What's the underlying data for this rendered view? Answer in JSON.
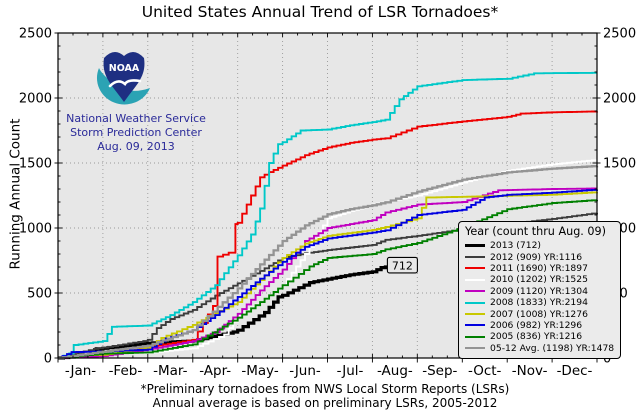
{
  "logo": {
    "acronym": "NOAA",
    "caption_lines": [
      "National Weather Service",
      "Storm Prediction Center",
      "Aug. 09, 2013"
    ]
  },
  "colors": {
    "figure_bg": "#ffffff",
    "plot_bg": "#e7e7e7",
    "grid": "#999999",
    "axis": "#000000",
    "legend_bg": "#ebebeb",
    "caption_blue": "#2a2a99",
    "logo_navy": "#1e2f82",
    "logo_teal": "#2ba3b4",
    "annotation_bg": "#e8e8e8"
  },
  "chart_data": {
    "type": "line",
    "title": "United States Annual Trend of LSR Tornadoes*",
    "ylabel": "Running Annual Count",
    "ylim": [
      0,
      2500
    ],
    "yticks": [
      0,
      500,
      1000,
      1500,
      2000,
      2500
    ],
    "x_unit": "month (Jan 1 = 0, Dec 31 = 12); x values are month-fraction positions",
    "x_tick_labels": [
      "-Jan-",
      "-Feb-",
      "-Mar-",
      "-Apr-",
      "-May-",
      "-Jun-",
      "-Jul-",
      "-Aug-",
      "-Sep-",
      "-Oct-",
      "-Nov-",
      "-Dec-"
    ],
    "grid": "dotted gray at 500-count intervals and month boundaries",
    "legend": {
      "title": "Year (count thru Aug. 09)",
      "position": "lower right"
    },
    "annotation": {
      "text": "712",
      "x_month": 7.29,
      "value": 712
    },
    "footnotes": [
      "*Preliminary tornadoes from NWS Local Storm Reports (LSRs)",
      "Annual average is based on preliminary LSRs, 2005-2012"
    ],
    "series": [
      {
        "name": "2013",
        "label": "2013 (712)",
        "color": "#000000",
        "width": 3.2,
        "points": [
          [
            0,
            0
          ],
          [
            0.6,
            20
          ],
          [
            0.85,
            70
          ],
          [
            1,
            75
          ],
          [
            2,
            114
          ],
          [
            3,
            132
          ],
          [
            3.9,
            200
          ],
          [
            4,
            214
          ],
          [
            4.6,
            350
          ],
          [
            4.9,
            470
          ],
          [
            5,
            482
          ],
          [
            5.6,
            580
          ],
          [
            6,
            607
          ],
          [
            6.5,
            640
          ],
          [
            7,
            663
          ],
          [
            7.29,
            712
          ]
        ]
      },
      {
        "name": "2012",
        "label": "2012 (909) YR:1116",
        "color": "#3c3c3c",
        "width": 1.9,
        "points": [
          [
            0,
            0
          ],
          [
            0.8,
            70
          ],
          [
            1,
            80
          ],
          [
            1.9,
            130
          ],
          [
            2,
            140
          ],
          [
            2.2,
            230
          ],
          [
            2.5,
            300
          ],
          [
            3,
            370
          ],
          [
            3.5,
            480
          ],
          [
            4,
            575
          ],
          [
            4.5,
            670
          ],
          [
            5,
            770
          ],
          [
            5.5,
            805
          ],
          [
            6,
            830
          ],
          [
            6.5,
            850
          ],
          [
            7,
            870
          ],
          [
            7.29,
            909
          ],
          [
            8,
            940
          ],
          [
            9,
            990
          ],
          [
            10,
            1030
          ],
          [
            11,
            1070
          ],
          [
            12,
            1116
          ]
        ]
      },
      {
        "name": "2011",
        "label": "2011 (1690) YR:1897",
        "color": "#ee0000",
        "width": 1.9,
        "points": [
          [
            0,
            0
          ],
          [
            0.5,
            10
          ],
          [
            1,
            20
          ],
          [
            2,
            85
          ],
          [
            3,
            140
          ],
          [
            3.45,
            400
          ],
          [
            3.55,
            780
          ],
          [
            3.8,
            810
          ],
          [
            3.95,
            1030
          ],
          [
            4,
            1040
          ],
          [
            4.5,
            1390
          ],
          [
            4.7,
            1430
          ],
          [
            5,
            1480
          ],
          [
            5.5,
            1560
          ],
          [
            6,
            1620
          ],
          [
            6.5,
            1655
          ],
          [
            7,
            1680
          ],
          [
            7.29,
            1690
          ],
          [
            8,
            1780
          ],
          [
            9,
            1820
          ],
          [
            10,
            1855
          ],
          [
            10.3,
            1880
          ],
          [
            11,
            1890
          ],
          [
            12,
            1897
          ]
        ]
      },
      {
        "name": "2010",
        "label": "2010 (1202) YR:1525",
        "color": "#ffffff",
        "width": 1.9,
        "points": [
          [
            0,
            0
          ],
          [
            1,
            36
          ],
          [
            2,
            40
          ],
          [
            3,
            75
          ],
          [
            3.7,
            180
          ],
          [
            4,
            330
          ],
          [
            4.5,
            430
          ],
          [
            5,
            560
          ],
          [
            5.5,
            800
          ],
          [
            6,
            1075
          ],
          [
            6.5,
            1130
          ],
          [
            7,
            1180
          ],
          [
            7.29,
            1202
          ],
          [
            8,
            1250
          ],
          [
            9,
            1350
          ],
          [
            10,
            1440
          ],
          [
            11,
            1490
          ],
          [
            12,
            1525
          ]
        ]
      },
      {
        "name": "2009",
        "label": "2009 (1120) YR:1304",
        "color": "#c000c0",
        "width": 1.9,
        "points": [
          [
            0,
            0
          ],
          [
            1,
            15
          ],
          [
            2,
            65
          ],
          [
            3,
            130
          ],
          [
            3.5,
            200
          ],
          [
            4,
            340
          ],
          [
            4.5,
            520
          ],
          [
            5,
            680
          ],
          [
            5.5,
            900
          ],
          [
            6,
            1000
          ],
          [
            6.5,
            1030
          ],
          [
            7,
            1060
          ],
          [
            7.29,
            1120
          ],
          [
            8,
            1180
          ],
          [
            9,
            1200
          ],
          [
            9.8,
            1290
          ],
          [
            11,
            1300
          ],
          [
            12,
            1304
          ]
        ]
      },
      {
        "name": "2008",
        "label": "2008 (1833) YR:2194",
        "color": "#00c8c8",
        "width": 1.9,
        "points": [
          [
            0,
            0
          ],
          [
            0.25,
            35
          ],
          [
            0.35,
            100
          ],
          [
            1,
            130
          ],
          [
            1.2,
            240
          ],
          [
            2,
            250
          ],
          [
            2.5,
            330
          ],
          [
            3,
            430
          ],
          [
            3.5,
            560
          ],
          [
            4,
            790
          ],
          [
            4.3,
            950
          ],
          [
            4.5,
            1150
          ],
          [
            4.7,
            1500
          ],
          [
            4.9,
            1645
          ],
          [
            5,
            1660
          ],
          [
            5.4,
            1750
          ],
          [
            6,
            1758
          ],
          [
            6.5,
            1790
          ],
          [
            7,
            1815
          ],
          [
            7.29,
            1833
          ],
          [
            7.6,
            1990
          ],
          [
            8,
            2090
          ],
          [
            9,
            2138
          ],
          [
            10,
            2148
          ],
          [
            10.6,
            2190
          ],
          [
            12,
            2194
          ]
        ]
      },
      {
        "name": "2007",
        "label": "2007 (1008) YR:1276",
        "color": "#c8c800",
        "width": 1.9,
        "points": [
          [
            0,
            0
          ],
          [
            0.5,
            20
          ],
          [
            1,
            25
          ],
          [
            2,
            80
          ],
          [
            2.3,
            155
          ],
          [
            3,
            255
          ],
          [
            3.5,
            345
          ],
          [
            4,
            430
          ],
          [
            4.5,
            600
          ],
          [
            5,
            770
          ],
          [
            5.5,
            880
          ],
          [
            6,
            940
          ],
          [
            7,
            985
          ],
          [
            7.29,
            1008
          ],
          [
            8,
            1075
          ],
          [
            8.2,
            1235
          ],
          [
            9,
            1240
          ],
          [
            10,
            1248
          ],
          [
            11,
            1256
          ],
          [
            12,
            1276
          ]
        ]
      },
      {
        "name": "2006",
        "label": "2006 (982) YR:1296",
        "color": "#0000e0",
        "width": 1.9,
        "points": [
          [
            0,
            0
          ],
          [
            0.3,
            45
          ],
          [
            1,
            50
          ],
          [
            2,
            65
          ],
          [
            2.4,
            150
          ],
          [
            3,
            215
          ],
          [
            3.5,
            330
          ],
          [
            4,
            470
          ],
          [
            4.5,
            610
          ],
          [
            5,
            740
          ],
          [
            5.5,
            855
          ],
          [
            6,
            920
          ],
          [
            7,
            965
          ],
          [
            7.29,
            982
          ],
          [
            8,
            1100
          ],
          [
            9,
            1140
          ],
          [
            9.5,
            1235
          ],
          [
            10,
            1255
          ],
          [
            11,
            1272
          ],
          [
            12,
            1296
          ]
        ]
      },
      {
        "name": "2005",
        "label": "2005 (836) YR:1216",
        "color": "#008000",
        "width": 1.9,
        "points": [
          [
            0,
            0
          ],
          [
            1,
            33
          ],
          [
            2,
            43
          ],
          [
            3,
            105
          ],
          [
            4,
            310
          ],
          [
            4.5,
            430
          ],
          [
            5,
            560
          ],
          [
            5.6,
            705
          ],
          [
            6,
            770
          ],
          [
            7,
            800
          ],
          [
            7.29,
            836
          ],
          [
            8,
            885
          ],
          [
            9,
            1005
          ],
          [
            10,
            1145
          ],
          [
            11,
            1192
          ],
          [
            12,
            1216
          ]
        ]
      },
      {
        "name": "avg-2005-2012",
        "label": "05-12 Avg. (1198) YR:1478",
        "color": "#949494",
        "width": 2.3,
        "points": [
          [
            0,
            0
          ],
          [
            1,
            49
          ],
          [
            2,
            95
          ],
          [
            3,
            215
          ],
          [
            4,
            535
          ],
          [
            4.5,
            720
          ],
          [
            5,
            900
          ],
          [
            5.5,
            1020
          ],
          [
            6,
            1105
          ],
          [
            6.5,
            1145
          ],
          [
            7,
            1175
          ],
          [
            7.29,
            1198
          ],
          [
            8,
            1280
          ],
          [
            9,
            1372
          ],
          [
            10,
            1428
          ],
          [
            11,
            1457
          ],
          [
            12,
            1478
          ]
        ]
      }
    ]
  }
}
